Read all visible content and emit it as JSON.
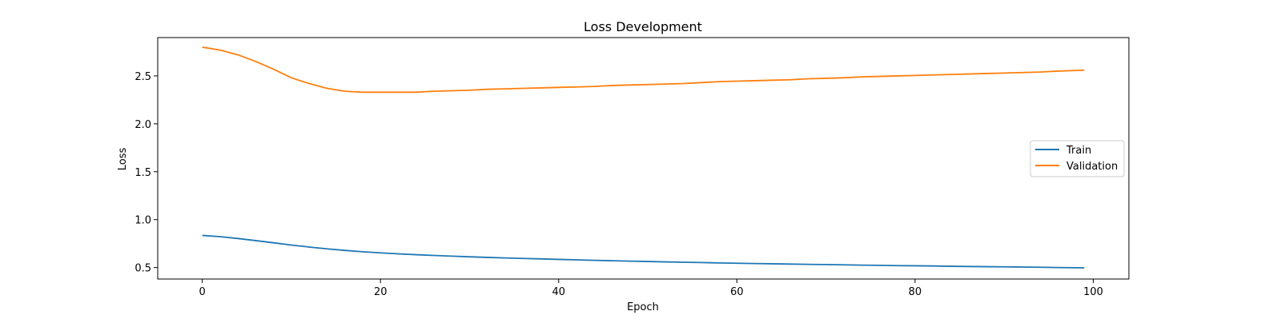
{
  "chart_data": {
    "type": "line",
    "title": "Loss Development",
    "xlabel": "Epoch",
    "ylabel": "Loss",
    "xlim": [
      -5,
      104
    ],
    "ylim": [
      0.38,
      2.9
    ],
    "xticks": [
      0,
      20,
      40,
      60,
      80,
      100
    ],
    "yticks": [
      0.5,
      1.0,
      1.5,
      2.0,
      2.5
    ],
    "xtick_labels": [
      "0",
      "20",
      "40",
      "60",
      "80",
      "100"
    ],
    "ytick_labels": [
      "0.5",
      "1.0",
      "1.5",
      "2.0",
      "2.5"
    ],
    "grid": false,
    "legend_position": "center-right",
    "series": [
      {
        "name": "Train",
        "color": "#1f77b4",
        "x": [
          0,
          2,
          4,
          6,
          8,
          10,
          12,
          14,
          16,
          18,
          20,
          22,
          24,
          26,
          28,
          30,
          32,
          34,
          36,
          38,
          40,
          42,
          44,
          46,
          48,
          50,
          52,
          54,
          56,
          58,
          60,
          62,
          64,
          66,
          68,
          70,
          72,
          74,
          76,
          78,
          80,
          82,
          84,
          86,
          88,
          90,
          92,
          94,
          96,
          99
        ],
        "values": [
          0.835,
          0.822,
          0.803,
          0.781,
          0.758,
          0.735,
          0.714,
          0.695,
          0.679,
          0.665,
          0.653,
          0.643,
          0.634,
          0.626,
          0.619,
          0.612,
          0.606,
          0.6,
          0.595,
          0.59,
          0.585,
          0.58,
          0.575,
          0.571,
          0.567,
          0.563,
          0.559,
          0.555,
          0.552,
          0.548,
          0.545,
          0.542,
          0.539,
          0.536,
          0.533,
          0.531,
          0.528,
          0.525,
          0.523,
          0.52,
          0.518,
          0.516,
          0.513,
          0.511,
          0.509,
          0.507,
          0.505,
          0.503,
          0.5,
          0.497
        ]
      },
      {
        "name": "Validation",
        "color": "#ff7f0e",
        "x": [
          0,
          2,
          4,
          6,
          8,
          10,
          12,
          14,
          16,
          18,
          20,
          22,
          24,
          26,
          28,
          30,
          32,
          34,
          36,
          38,
          40,
          42,
          44,
          46,
          48,
          50,
          52,
          54,
          56,
          58,
          60,
          62,
          64,
          66,
          68,
          70,
          72,
          74,
          76,
          78,
          80,
          82,
          84,
          86,
          88,
          90,
          92,
          94,
          96,
          99
        ],
        "values": [
          2.8,
          2.77,
          2.72,
          2.65,
          2.57,
          2.48,
          2.42,
          2.37,
          2.34,
          2.33,
          2.33,
          2.33,
          2.33,
          2.34,
          2.345,
          2.35,
          2.36,
          2.365,
          2.37,
          2.375,
          2.38,
          2.385,
          2.39,
          2.4,
          2.405,
          2.41,
          2.415,
          2.42,
          2.43,
          2.44,
          2.445,
          2.45,
          2.455,
          2.46,
          2.47,
          2.475,
          2.48,
          2.49,
          2.495,
          2.5,
          2.505,
          2.51,
          2.515,
          2.52,
          2.525,
          2.53,
          2.535,
          2.54,
          2.55,
          2.56
        ]
      }
    ]
  }
}
